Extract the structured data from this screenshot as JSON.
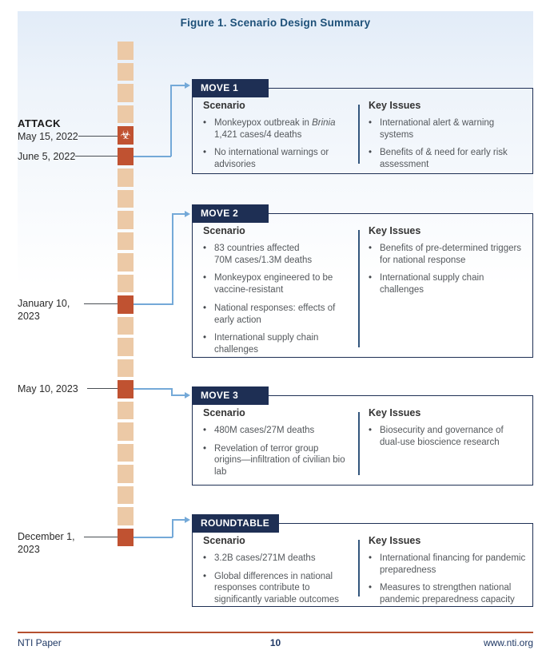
{
  "page": {
    "title": "Figure 1. Scenario Design Summary",
    "footer": {
      "left": "NTI Paper",
      "page_number": "10",
      "right": "www.nti.org"
    }
  },
  "colors": {
    "navy": "#1e2f54",
    "orange": "#c05231",
    "tan": "#ecc9a6",
    "connector_blue": "#74a9d8",
    "connector_dark": "#4a4f54",
    "divider_blue": "#33567d",
    "footer_rule": "#b5502f",
    "title_blue": "#1d5078"
  },
  "timeline": {
    "biohazard_glyph": "☣",
    "squares": [
      "tan",
      "tan",
      "tan",
      "tan",
      "biohazard",
      "orange",
      "tan",
      "tan",
      "tan",
      "tan",
      "tan",
      "tan",
      "orange",
      "tan",
      "tan",
      "tan",
      "orange",
      "tan",
      "tan",
      "tan",
      "tan",
      "tan",
      "tan",
      "orange"
    ]
  },
  "events": [
    {
      "title": "ATTACK",
      "date": "May 15, 2022"
    },
    {
      "date": "June 5, 2022"
    },
    {
      "date": "January 10,\n2023"
    },
    {
      "date": "May 10, 2023"
    },
    {
      "date": "December 1,\n2023"
    }
  ],
  "boxes": [
    {
      "label": "MOVE 1",
      "scenario_heading": "Scenario",
      "key_issues_heading": "Key Issues",
      "scenario": [
        {
          "segments": [
            {
              "text": "Monkeypox outbreak in "
            },
            {
              "text": "Brinia",
              "italic": true
            },
            {
              "text": "\n1,421 cases/4 deaths"
            }
          ]
        },
        "No international warnings or advisories"
      ],
      "key_issues": [
        "International alert & warning systems",
        "Benefits of & need for early risk assessment"
      ]
    },
    {
      "label": "MOVE 2",
      "scenario_heading": "Scenario",
      "key_issues_heading": "Key Issues",
      "scenario": [
        "83 countries affected\n70M cases/1.3M deaths",
        "Monkeypox engineered to be vaccine-resistant",
        "National responses: effects of early action",
        "International supply chain challenges"
      ],
      "key_issues": [
        "Benefits of pre-determined triggers for national response",
        "International supply chain challenges"
      ]
    },
    {
      "label": "MOVE 3",
      "scenario_heading": "Scenario",
      "key_issues_heading": "Key Issues",
      "scenario": [
        "480M cases/27M deaths",
        "Revelation of terror group origins—infiltration of civilian bio lab"
      ],
      "key_issues": [
        "Biosecurity and governance of dual-use bioscience research"
      ]
    },
    {
      "label": "ROUNDTABLE",
      "scenario_heading": "Scenario",
      "key_issues_heading": "Key Issues",
      "scenario": [
        "3.2B cases/271M deaths",
        "Global differences in national responses contribute to significantly variable outcomes"
      ],
      "key_issues": [
        "International financing for pandemic preparedness",
        "Measures to strengthen national pandemic preparedness capacity"
      ]
    }
  ]
}
